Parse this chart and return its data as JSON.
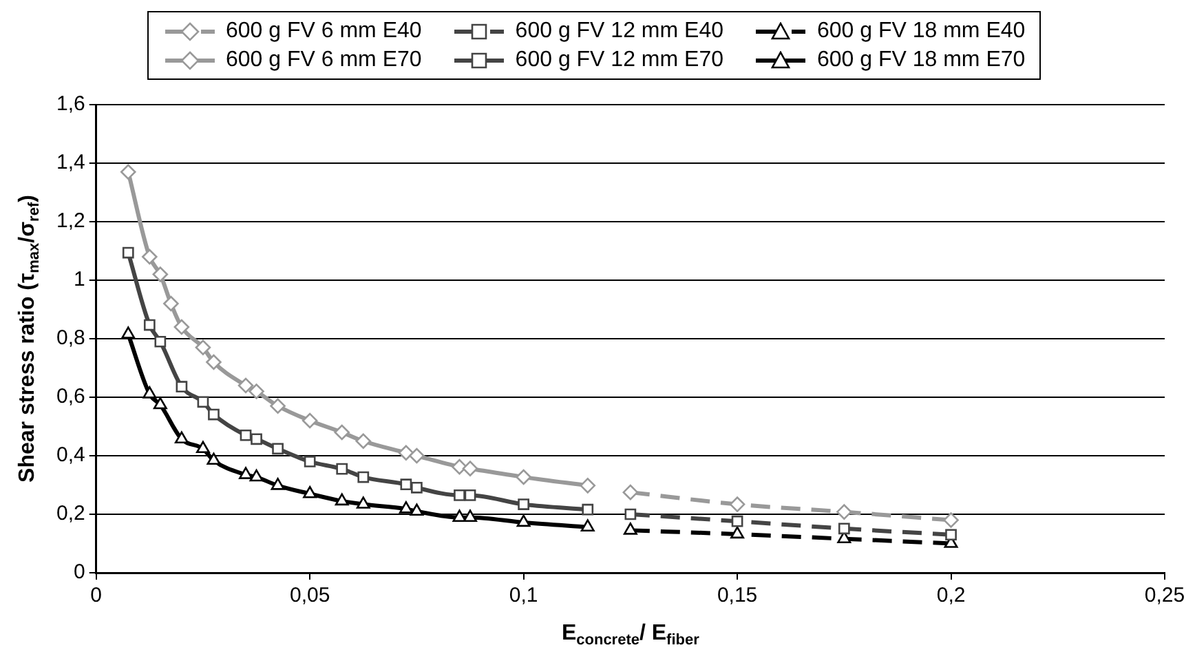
{
  "chart_data": {
    "type": "line",
    "xlabel": "E$_{concrete}$/ E$_{fiber}$",
    "ylabel": "Shear stress ratio (τ$_{max}$/σ$_{ref}$)",
    "xlim": [
      0,
      0.25
    ],
    "xticks": [
      0,
      {
        "value": 0.05,
        "label": "0,05"
      },
      {
        "value": 0.1,
        "label": "0,1"
      },
      {
        "value": 0.15,
        "label": "0,15"
      },
      {
        "value": 0.2,
        "label": "0,2"
      },
      {
        "value": 0.25,
        "label": "0,25"
      }
    ],
    "ylim": [
      0,
      1.6
    ],
    "yticks": [
      0,
      {
        "value": 0.2,
        "label": "0,2"
      },
      {
        "value": 0.4,
        "label": "0,4"
      },
      {
        "value": 0.6,
        "label": "0,6"
      },
      {
        "value": 0.8,
        "label": "0,8"
      },
      1,
      {
        "value": 1.2,
        "label": "1,2"
      },
      {
        "value": 1.4,
        "label": "1,4"
      },
      {
        "value": 1.6,
        "label": "1,6"
      }
    ],
    "grid": "y",
    "legend": "top",
    "series": [
      {
        "name": "600 g FV 6 mm E40",
        "color": "#999999",
        "marker": "diamond",
        "line_style": "dashed",
        "x": [
          0.125,
          0.15,
          0.175,
          0.2
        ],
        "values": [
          0.275,
          0.234,
          0.208,
          0.18
        ]
      },
      {
        "name": "600 g FV 12 mm E40",
        "color": "#444444",
        "marker": "square",
        "line_style": "dashed",
        "x": [
          0.125,
          0.15,
          0.175,
          0.2
        ],
        "values": [
          0.2,
          0.176,
          0.151,
          0.13
        ]
      },
      {
        "name": "600 g FV 18 mm E40",
        "color": "#000000",
        "marker": "triangle",
        "line_style": "dashed",
        "x": [
          0.125,
          0.15,
          0.175,
          0.2
        ],
        "values": [
          0.145,
          0.132,
          0.116,
          0.1
        ]
      },
      {
        "name": "600 g FV 6 mm E70",
        "color": "#999999",
        "marker": "diamond",
        "line_style": "solid",
        "x": [
          0.0075,
          0.0125,
          0.015,
          0.0175,
          0.02,
          0.025,
          0.0275,
          0.035,
          0.0375,
          0.0425,
          0.05,
          0.0575,
          0.0625,
          0.0725,
          0.075,
          0.085,
          0.0875,
          0.1,
          0.115
        ],
        "values": [
          1.37,
          1.08,
          1.02,
          0.92,
          0.84,
          0.77,
          0.72,
          0.64,
          0.62,
          0.57,
          0.52,
          0.48,
          0.45,
          0.41,
          0.4,
          0.362,
          0.356,
          0.327,
          0.298
        ]
      },
      {
        "name": "600 g FV 12 mm E70",
        "color": "#444444",
        "marker": "square",
        "line_style": "solid",
        "x": [
          0.0075,
          0.0125,
          0.015,
          0.02,
          0.025,
          0.0275,
          0.035,
          0.0375,
          0.0425,
          0.05,
          0.0575,
          0.0625,
          0.0725,
          0.075,
          0.085,
          0.0875,
          0.1,
          0.115
        ],
        "values": [
          1.094,
          0.847,
          0.79,
          0.636,
          0.584,
          0.541,
          0.47,
          0.457,
          0.424,
          0.38,
          0.355,
          0.327,
          0.302,
          0.291,
          0.265,
          0.265,
          0.234,
          0.216
        ]
      },
      {
        "name": "600 g FV 18 mm E70",
        "color": "#000000",
        "marker": "triangle",
        "line_style": "solid",
        "x": [
          0.0075,
          0.0125,
          0.015,
          0.02,
          0.025,
          0.0275,
          0.035,
          0.0375,
          0.0425,
          0.05,
          0.0575,
          0.0625,
          0.0725,
          0.075,
          0.085,
          0.0875,
          0.1,
          0.115
        ],
        "values": [
          0.815,
          0.611,
          0.574,
          0.457,
          0.424,
          0.384,
          0.335,
          0.327,
          0.298,
          0.27,
          0.245,
          0.234,
          0.218,
          0.21,
          0.189,
          0.189,
          0.172,
          0.156
        ]
      }
    ]
  }
}
